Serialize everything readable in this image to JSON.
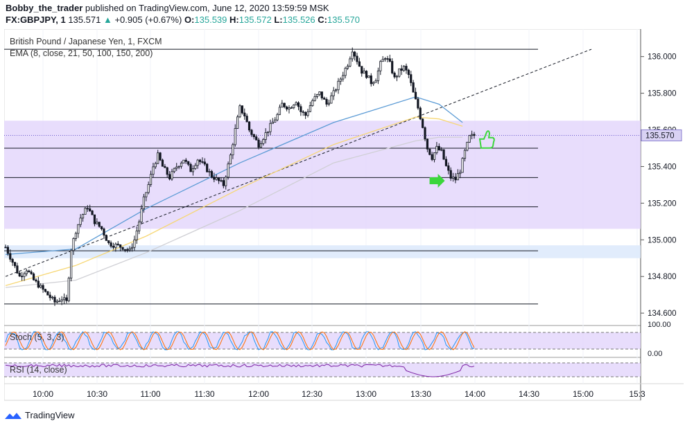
{
  "header": {
    "author": "Bobby_the_trader",
    "published_text": "published on TradingView.com, June 12, 2020 13:59:59 MSK",
    "symbol": "FX:GBPJPY, 1",
    "last": "135.571",
    "change": "+0.905 (+0.67%)",
    "o_label": "O:",
    "o_val": "135.539",
    "h_label": "H:",
    "h_val": "135.572",
    "l_label": "L:",
    "l_val": "135.526",
    "c_label": "C:",
    "c_val": "135.570"
  },
  "legend": {
    "instrument": "British Pound / Japanese Yen, 1, FXCM",
    "ema": "EMA (8, close, 21, 50, 100, 150, 200)",
    "stoch": "Stoch (5, 3, 3)",
    "rsi": "RSI (14, close)"
  },
  "chart_data": {
    "type": "candlestick",
    "y_axis": {
      "ticks": [
        "136.000",
        "135.800",
        "135.600",
        "135.400",
        "135.200",
        "135.000",
        "134.800",
        "134.600"
      ],
      "range": [
        134.54,
        136.15
      ]
    },
    "current_price_label": "135.570",
    "x_axis": {
      "ticks": [
        "10:00",
        "10:30",
        "11:00",
        "11:30",
        "12:00",
        "12:30",
        "13:00",
        "13:30",
        "14:00",
        "14:30",
        "15:00",
        "15:3"
      ]
    },
    "price_path": [
      [
        0,
        134.96
      ],
      [
        3,
        134.88
      ],
      [
        6,
        134.8
      ],
      [
        9,
        134.84
      ],
      [
        12,
        134.78
      ],
      [
        15,
        134.74
      ],
      [
        18,
        134.7
      ],
      [
        21,
        134.66
      ],
      [
        24,
        134.68
      ],
      [
        26,
        134.66
      ],
      [
        28,
        134.95
      ],
      [
        30,
        135.05
      ],
      [
        32,
        135.12
      ],
      [
        35,
        135.18
      ],
      [
        38,
        135.1
      ],
      [
        41,
        135.06
      ],
      [
        44,
        134.98
      ],
      [
        47,
        134.97
      ],
      [
        50,
        134.96
      ],
      [
        53,
        134.94
      ],
      [
        55,
        135.0
      ],
      [
        57,
        135.1
      ],
      [
        59,
        135.22
      ],
      [
        61,
        135.3
      ],
      [
        63,
        135.4
      ],
      [
        65,
        135.46
      ],
      [
        67,
        135.4
      ],
      [
        70,
        135.34
      ],
      [
        73,
        135.4
      ],
      [
        76,
        135.44
      ],
      [
        79,
        135.38
      ],
      [
        82,
        135.44
      ],
      [
        85,
        135.4
      ],
      [
        88,
        135.35
      ],
      [
        91,
        135.32
      ],
      [
        93,
        135.3
      ],
      [
        96,
        135.46
      ],
      [
        98,
        135.6
      ],
      [
        100,
        135.72
      ],
      [
        102,
        135.68
      ],
      [
        104,
        135.6
      ],
      [
        106,
        135.56
      ],
      [
        108,
        135.52
      ],
      [
        110,
        135.56
      ],
      [
        112,
        135.6
      ],
      [
        114,
        135.64
      ],
      [
        116,
        135.68
      ],
      [
        118,
        135.74
      ],
      [
        121,
        135.72
      ],
      [
        124,
        135.76
      ],
      [
        126,
        135.7
      ],
      [
        128,
        135.68
      ],
      [
        131,
        135.76
      ],
      [
        134,
        135.8
      ],
      [
        137,
        135.74
      ],
      [
        140,
        135.8
      ],
      [
        143,
        135.88
      ],
      [
        146,
        135.96
      ],
      [
        148,
        136.04
      ],
      [
        150,
        135.98
      ],
      [
        152,
        135.92
      ],
      [
        154,
        135.9
      ],
      [
        156,
        135.86
      ],
      [
        158,
        135.88
      ],
      [
        160,
        135.96
      ],
      [
        162,
        136.0
      ],
      [
        164,
        135.96
      ],
      [
        166,
        135.88
      ],
      [
        168,
        135.92
      ],
      [
        170,
        135.94
      ],
      [
        172,
        135.9
      ],
      [
        174,
        135.8
      ],
      [
        176,
        135.72
      ],
      [
        178,
        135.62
      ],
      [
        180,
        135.5
      ],
      [
        182,
        135.45
      ],
      [
        184,
        135.5
      ],
      [
        186,
        135.48
      ],
      [
        188,
        135.4
      ],
      [
        190,
        135.34
      ],
      [
        192,
        135.33
      ],
      [
        194,
        135.38
      ],
      [
        196,
        135.48
      ],
      [
        198,
        135.56
      ],
      [
        200,
        135.57
      ]
    ],
    "ema_series": [
      {
        "name": "EMA fast",
        "color": "#5b9bd5",
        "values": [
          [
            0,
            134.92
          ],
          [
            30,
            134.95
          ],
          [
            60,
            135.17
          ],
          [
            100,
            135.42
          ],
          [
            140,
            135.64
          ],
          [
            175,
            135.78
          ],
          [
            185,
            135.74
          ],
          [
            195,
            135.64
          ]
        ]
      },
      {
        "name": "EMA mid",
        "color": "#f7d774",
        "values": [
          [
            0,
            134.75
          ],
          [
            30,
            134.86
          ],
          [
            60,
            135.02
          ],
          [
            100,
            135.28
          ],
          [
            140,
            135.52
          ],
          [
            175,
            135.67
          ],
          [
            185,
            135.66
          ],
          [
            195,
            135.62
          ]
        ]
      },
      {
        "name": "EMA slow",
        "color": "#cfcfd4",
        "values": [
          [
            0,
            134.74
          ],
          [
            30,
            134.78
          ],
          [
            60,
            134.93
          ],
          [
            100,
            135.16
          ],
          [
            140,
            135.42
          ],
          [
            175,
            135.54
          ],
          [
            185,
            135.56
          ],
          [
            195,
            135.56
          ]
        ]
      }
    ],
    "horizontal_levels": [
      136.04,
      135.5,
      135.34,
      135.18,
      134.94,
      134.65
    ],
    "zones": [
      {
        "from": 135.06,
        "to": 135.65,
        "color": "#e4d7fb"
      },
      {
        "from": 134.9,
        "to": 134.97,
        "color": "#dce9fb"
      }
    ],
    "trendline": {
      "from": [
        0,
        134.8
      ],
      "to": [
        250,
        136.04
      ]
    },
    "stoch": {
      "ticks": [
        "100.00",
        "0.00"
      ]
    },
    "rsi": {}
  },
  "branding": {
    "name": "TradingView"
  },
  "colors": {
    "bull": "#26a69a",
    "candle": "#131722",
    "accent_green": "#3bd63b"
  }
}
